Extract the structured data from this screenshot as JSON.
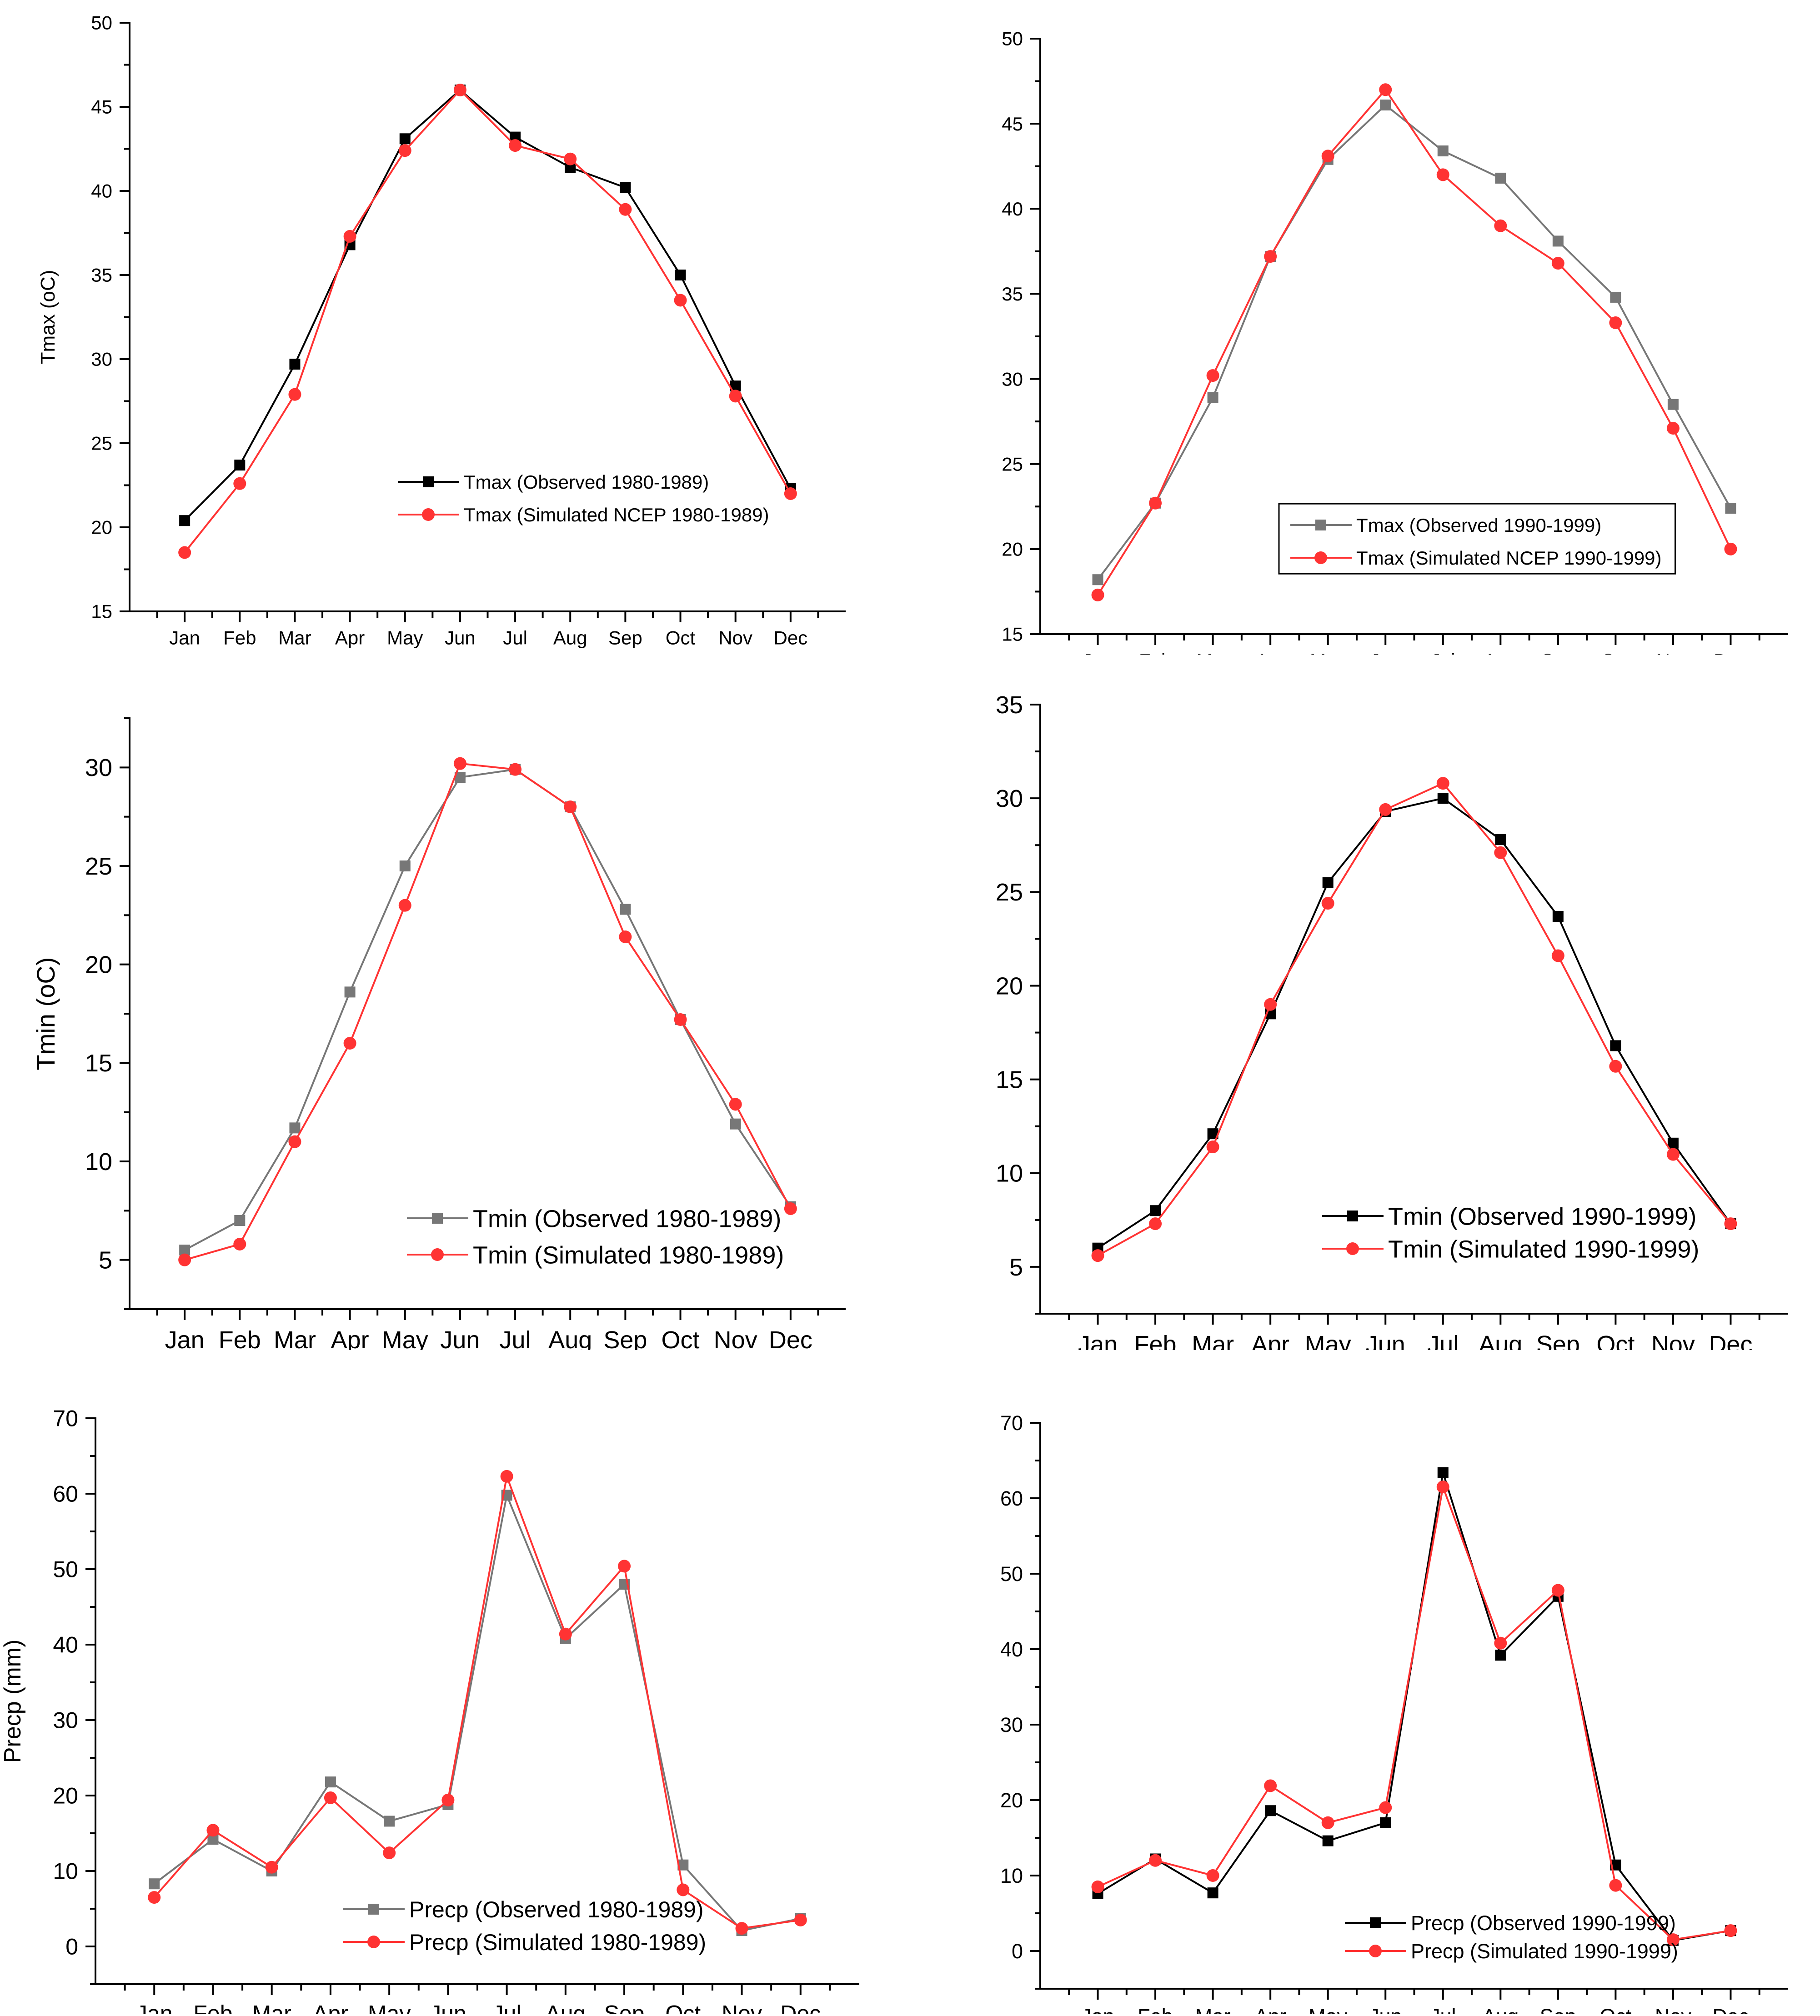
{
  "months": [
    "Jan",
    "Feb",
    "Mar",
    "Apr",
    "May",
    "Jun",
    "Jul",
    "Aug",
    "Sep",
    "Oct",
    "Nov",
    "Dec"
  ],
  "chart_data": [
    {
      "id": "tmax-1980",
      "type": "line",
      "ylabel": "Tmax (oC)",
      "ylim": [
        15,
        50
      ],
      "yticks": [
        15,
        20,
        25,
        30,
        35,
        40,
        45,
        50
      ],
      "legend_position": "lower-center",
      "legend_box": false,
      "series": [
        {
          "name": "Tmax (Observed 1980-1989)",
          "color": "#000000",
          "marker": "square",
          "values": [
            20.4,
            23.7,
            29.7,
            36.8,
            43.1,
            46.0,
            43.2,
            41.4,
            40.2,
            35.0,
            28.4,
            22.3
          ]
        },
        {
          "name": "Tmax (Simulated NCEP 1980-1989)",
          "color": "#ff3333",
          "marker": "circle",
          "values": [
            18.5,
            22.6,
            27.9,
            37.3,
            42.4,
            46.0,
            42.7,
            41.9,
            38.9,
            33.5,
            27.8,
            22.0
          ]
        }
      ]
    },
    {
      "id": "tmax-1990",
      "type": "line",
      "ylabel": "",
      "ylim": [
        15,
        50
      ],
      "yticks": [
        15,
        20,
        25,
        30,
        35,
        40,
        45,
        50
      ],
      "legend_position": "lower-center",
      "legend_box": true,
      "series": [
        {
          "name": "Tmax (Observed 1990-1999)",
          "color": "#777777",
          "marker": "square",
          "values": [
            18.2,
            22.7,
            28.9,
            37.2,
            42.9,
            46.1,
            43.4,
            41.8,
            38.1,
            34.8,
            28.5,
            22.4
          ]
        },
        {
          "name": "Tmax (Simulated NCEP 1990-1999)",
          "color": "#ff3333",
          "marker": "circle",
          "values": [
            17.3,
            22.7,
            30.2,
            37.2,
            43.1,
            47.0,
            42.0,
            39.0,
            36.8,
            33.3,
            27.1,
            20.0
          ]
        }
      ]
    },
    {
      "id": "tmin-1980",
      "type": "line",
      "ylabel": "Tmin (oC)",
      "ylim": [
        2.5,
        32.5
      ],
      "yticks": [
        5,
        10,
        15,
        20,
        25,
        30
      ],
      "legend_position": "lower-center",
      "legend_box": false,
      "series": [
        {
          "name": "Tmin (Observed 1980-1989)",
          "color": "#777777",
          "marker": "square",
          "values": [
            5.5,
            7.0,
            11.7,
            18.6,
            25.0,
            29.5,
            29.9,
            28.0,
            22.8,
            17.2,
            11.9,
            7.7
          ]
        },
        {
          "name": "Tmin (Simulated 1980-1989)",
          "color": "#ff3333",
          "marker": "circle",
          "values": [
            5.0,
            5.8,
            11.0,
            16.0,
            23.0,
            30.2,
            29.9,
            28.0,
            21.4,
            17.2,
            12.9,
            7.6
          ]
        }
      ]
    },
    {
      "id": "tmin-1990",
      "type": "line",
      "ylabel": "",
      "ylim": [
        2.5,
        35
      ],
      "yticks": [
        5,
        10,
        15,
        20,
        25,
        30,
        35
      ],
      "legend_position": "lower-center",
      "legend_box": false,
      "series": [
        {
          "name": "Tmin (Observed 1990-1999)",
          "color": "#000000",
          "marker": "square",
          "values": [
            6.0,
            8.0,
            12.1,
            18.5,
            25.5,
            29.3,
            30.0,
            27.8,
            23.7,
            16.8,
            11.6,
            7.3
          ]
        },
        {
          "name": "Tmin (Simulated 1990-1999)",
          "color": "#ff3333",
          "marker": "circle",
          "values": [
            5.6,
            7.3,
            11.4,
            19.0,
            24.4,
            29.4,
            30.8,
            27.1,
            21.6,
            15.7,
            11.0,
            7.3
          ]
        }
      ]
    },
    {
      "id": "precp-1980",
      "type": "line",
      "ylabel": "Precp (mm)",
      "ylim": [
        -5,
        70
      ],
      "yticks": [
        0,
        10,
        20,
        30,
        40,
        50,
        60,
        70
      ],
      "legend_position": "lower-center",
      "legend_box": false,
      "series": [
        {
          "name": "Precp (Observed 1980-1989)",
          "color": "#777777",
          "marker": "square",
          "values": [
            8.3,
            14.2,
            10.0,
            21.8,
            16.6,
            18.8,
            59.8,
            40.8,
            48.0,
            10.8,
            2.1,
            3.7
          ]
        },
        {
          "name": "Precp (Simulated 1980-1989)",
          "color": "#ff3333",
          "marker": "circle",
          "values": [
            6.5,
            15.4,
            10.5,
            19.7,
            12.4,
            19.4,
            62.3,
            41.4,
            50.4,
            7.5,
            2.4,
            3.5
          ]
        }
      ]
    },
    {
      "id": "precp-1990",
      "type": "line",
      "ylabel": "",
      "ylim": [
        -5,
        70
      ],
      "yticks": [
        0,
        10,
        20,
        30,
        40,
        50,
        60,
        70
      ],
      "legend_position": "lower-center",
      "legend_box": false,
      "series": [
        {
          "name": "Precp (Observed 1990-1999)",
          "color": "#000000",
          "marker": "square",
          "values": [
            7.6,
            12.2,
            7.7,
            18.6,
            14.6,
            17.0,
            63.4,
            39.2,
            47.0,
            11.4,
            1.4,
            2.7
          ]
        },
        {
          "name": "Precp (Simulated 1990-1999)",
          "color": "#ff3333",
          "marker": "circle",
          "values": [
            8.5,
            12.0,
            10.0,
            21.9,
            17.0,
            19.0,
            61.5,
            40.8,
            47.8,
            8.7,
            1.5,
            2.7
          ]
        }
      ]
    }
  ]
}
